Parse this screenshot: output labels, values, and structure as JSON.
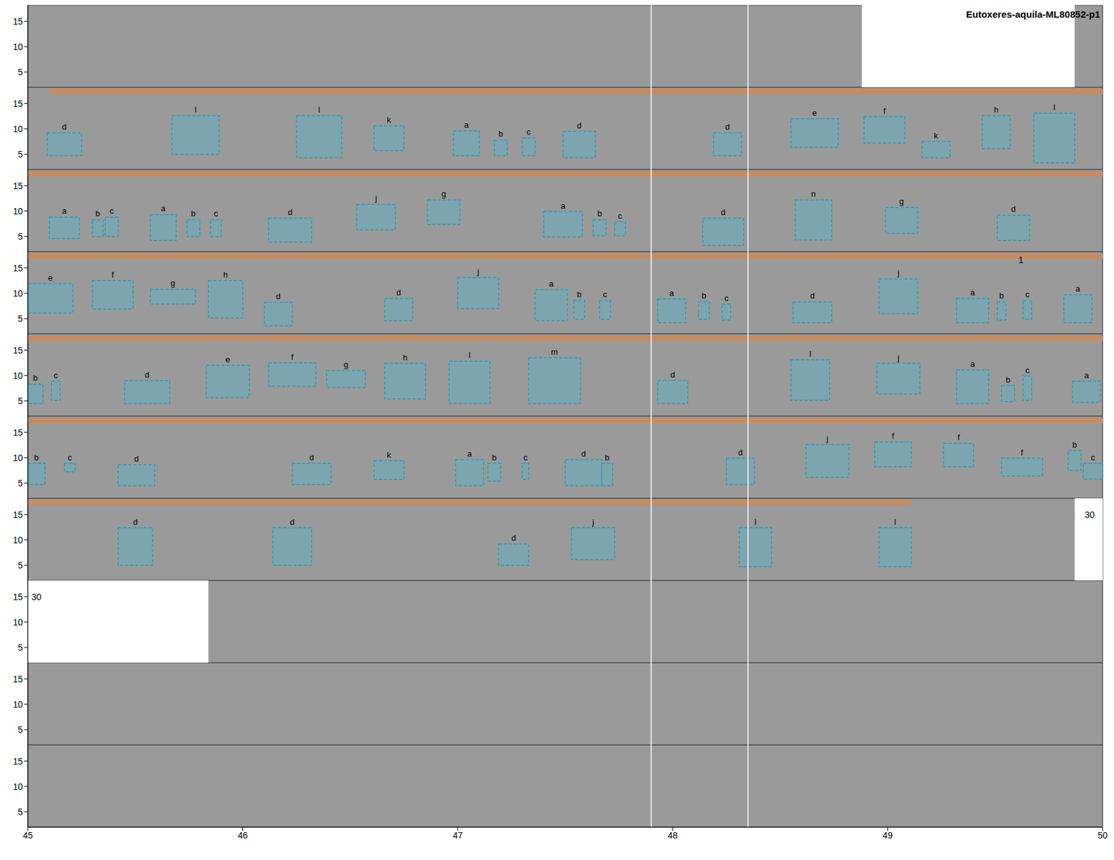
{
  "chart_data": {
    "type": "spectrogram",
    "title": "Eutoxeres-aquila-ML80852-p1",
    "xlim": [
      45,
      50
    ],
    "xticks": [
      45,
      46,
      47,
      48,
      49,
      50
    ],
    "ylim": [
      2,
      18.2
    ],
    "yticks": [
      5,
      10,
      15
    ],
    "vertical_lines": [
      47.9,
      48.35
    ],
    "rows": [
      {
        "blank": [
          [
            48.88,
            49.87
          ]
        ],
        "highlight": [],
        "boxes": [],
        "annotations": []
      },
      {
        "blank": [],
        "highlight": [
          45.1,
          50
        ],
        "boxes": [
          {
            "label": "d",
            "x": [
              45.09,
              45.25
            ],
            "y": [
              4.7,
              9.2
            ]
          },
          {
            "label": "l",
            "x": [
              45.67,
              45.89
            ],
            "y": [
              5,
              12.6
            ]
          },
          {
            "label": "l",
            "x": [
              46.25,
              46.46
            ],
            "y": [
              4.3,
              12.6
            ]
          },
          {
            "label": "k",
            "x": [
              46.61,
              46.75
            ],
            "y": [
              5.7,
              10.6
            ]
          },
          {
            "label": "a",
            "x": [
              46.98,
              47.1
            ],
            "y": [
              4.7,
              9.6
            ]
          },
          {
            "label": "b",
            "x": [
              47.17,
              47.23
            ],
            "y": [
              4.7,
              7.8
            ]
          },
          {
            "label": "c",
            "x": [
              47.3,
              47.36
            ],
            "y": [
              4.7,
              8.2
            ]
          },
          {
            "label": "d",
            "x": [
              47.49,
              47.64
            ],
            "y": [
              4.3,
              9.5
            ]
          },
          {
            "label": "d",
            "x": [
              48.19,
              48.32
            ],
            "y": [
              4.7,
              9.2
            ]
          },
          {
            "label": "e",
            "x": [
              48.55,
              48.77
            ],
            "y": [
              6.4,
              12
            ]
          },
          {
            "label": "f",
            "x": [
              48.89,
              49.08
            ],
            "y": [
              7.2,
              12.4
            ]
          },
          {
            "label": "k",
            "x": [
              49.16,
              49.29
            ],
            "y": [
              4.3,
              7.5
            ]
          },
          {
            "label": "h",
            "x": [
              49.44,
              49.57
            ],
            "y": [
              6.1,
              12.6
            ]
          },
          {
            "label": "l",
            "x": [
              49.68,
              49.87
            ],
            "y": [
              3.3,
              13.1
            ]
          }
        ],
        "annotations": []
      },
      {
        "blank": [],
        "highlight": [
          45,
          50
        ],
        "boxes": [
          {
            "label": "a",
            "x": [
              45.1,
              45.24
            ],
            "y": [
              4.6,
              8.8
            ]
          },
          {
            "label": "b",
            "x": [
              45.3,
              45.35
            ],
            "y": [
              5,
              8.3
            ]
          },
          {
            "label": "c",
            "x": [
              45.36,
              45.42
            ],
            "y": [
              5,
              8.8
            ]
          },
          {
            "label": "a",
            "x": [
              45.57,
              45.69
            ],
            "y": [
              4.2,
              9.3
            ]
          },
          {
            "label": "b",
            "x": [
              45.74,
              45.8
            ],
            "y": [
              5,
              8.3
            ]
          },
          {
            "label": "c",
            "x": [
              45.85,
              45.9
            ],
            "y": [
              5,
              8.3
            ]
          },
          {
            "label": "d",
            "x": [
              46.12,
              46.32
            ],
            "y": [
              3.9,
              8.6
            ]
          },
          {
            "label": "j",
            "x": [
              46.53,
              46.71
            ],
            "y": [
              6.3,
              11.3
            ]
          },
          {
            "label": "g",
            "x": [
              46.86,
              47.01
            ],
            "y": [
              7.4,
              12.2
            ]
          },
          {
            "label": "a",
            "x": [
              47.4,
              47.58
            ],
            "y": [
              4.9,
              9.9
            ]
          },
          {
            "label": "b",
            "x": [
              47.63,
              47.69
            ],
            "y": [
              5.1,
              8.3
            ]
          },
          {
            "label": "c",
            "x": [
              47.73,
              47.78
            ],
            "y": [
              5.1,
              7.9
            ]
          },
          {
            "label": "d",
            "x": [
              48.14,
              48.33
            ],
            "y": [
              3.2,
              8.6
            ]
          },
          {
            "label": "n",
            "x": [
              48.57,
              48.74
            ],
            "y": [
              4.3,
              12.2
            ]
          },
          {
            "label": "g",
            "x": [
              48.99,
              49.14
            ],
            "y": [
              5.6,
              10.7
            ]
          },
          {
            "label": "d",
            "x": [
              49.51,
              49.66
            ],
            "y": [
              4.2,
              9.2
            ]
          }
        ],
        "annotations": []
      },
      {
        "blank": [],
        "highlight": [
          45,
          50
        ],
        "boxes": [
          {
            "label": "e",
            "x": [
              45.0,
              45.21
            ],
            "y": [
              6.1,
              11.9
            ]
          },
          {
            "label": "f",
            "x": [
              45.3,
              45.49
            ],
            "y": [
              6.9,
              12.5
            ]
          },
          {
            "label": "g",
            "x": [
              45.57,
              45.78
            ],
            "y": [
              7.9,
              10.8
            ]
          },
          {
            "label": "h",
            "x": [
              45.84,
              46.0
            ],
            "y": [
              5.1,
              12.5
            ]
          },
          {
            "label": "d",
            "x": [
              46.1,
              46.23
            ],
            "y": [
              3.6,
              8.2
            ]
          },
          {
            "label": "d",
            "x": [
              46.66,
              46.79
            ],
            "y": [
              4.6,
              9
            ]
          },
          {
            "label": "j",
            "x": [
              47.0,
              47.19
            ],
            "y": [
              7,
              13.1
            ]
          },
          {
            "label": "a",
            "x": [
              47.36,
              47.51
            ],
            "y": [
              4.6,
              10.7
            ]
          },
          {
            "label": "b",
            "x": [
              47.54,
              47.59
            ],
            "y": [
              4.9,
              8.6
            ]
          },
          {
            "label": "c",
            "x": [
              47.66,
              47.71
            ],
            "y": [
              4.9,
              8.6
            ]
          },
          {
            "label": "a",
            "x": [
              47.93,
              48.06
            ],
            "y": [
              4.2,
              8.9
            ]
          },
          {
            "label": "b",
            "x": [
              48.12,
              48.17
            ],
            "y": [
              4.9,
              8.3
            ]
          },
          {
            "label": "c",
            "x": [
              48.23,
              48.27
            ],
            "y": [
              4.7,
              7.9
            ]
          },
          {
            "label": "d",
            "x": [
              48.56,
              48.74
            ],
            "y": [
              4.2,
              8.3
            ]
          },
          {
            "label": "j",
            "x": [
              48.96,
              49.14
            ],
            "y": [
              6,
              12.8
            ]
          },
          {
            "label": "a",
            "x": [
              49.32,
              49.47
            ],
            "y": [
              4.2,
              9
            ]
          },
          {
            "label": "b",
            "x": [
              49.51,
              49.55
            ],
            "y": [
              4.7,
              8.3
            ]
          },
          {
            "label": "c",
            "x": [
              49.63,
              49.67
            ],
            "y": [
              4.9,
              8.6
            ]
          },
          {
            "label": "a",
            "x": [
              49.82,
              49.95
            ],
            "y": [
              4.2,
              9.7
            ]
          }
        ],
        "annotations": [
          {
            "text": "1",
            "x": 49.62,
            "y": 16.6
          }
        ]
      },
      {
        "blank": [],
        "highlight": [
          45,
          50
        ],
        "boxes": [
          {
            "label": "b",
            "x": [
              45.0,
              45.07
            ],
            "y": [
              4.45,
              8.3
            ]
          },
          {
            "label": "c",
            "x": [
              45.11,
              45.15
            ],
            "y": [
              5.1,
              8.9
            ]
          },
          {
            "label": "d",
            "x": [
              45.45,
              45.66
            ],
            "y": [
              4.45,
              9
            ]
          },
          {
            "label": "e",
            "x": [
              45.83,
              46.03
            ],
            "y": [
              5.6,
              12
            ]
          },
          {
            "label": "f",
            "x": [
              46.12,
              46.34
            ],
            "y": [
              7.9,
              12.5
            ]
          },
          {
            "label": "g",
            "x": [
              46.39,
              46.57
            ],
            "y": [
              7.6,
              11
            ]
          },
          {
            "label": "h",
            "x": [
              46.66,
              46.85
            ],
            "y": [
              5.4,
              12.4
            ]
          },
          {
            "label": "l",
            "x": [
              46.96,
              47.15
            ],
            "y": [
              4.45,
              12.8
            ]
          },
          {
            "label": "m",
            "x": [
              47.33,
              47.57
            ],
            "y": [
              4.45,
              13.5
            ]
          },
          {
            "label": "d",
            "x": [
              47.93,
              48.07
            ],
            "y": [
              4.45,
              9
            ]
          },
          {
            "label": "l",
            "x": [
              48.55,
              48.73
            ],
            "y": [
              5.1,
              13.1
            ]
          },
          {
            "label": "j",
            "x": [
              48.95,
              49.15
            ],
            "y": [
              6.4,
              12.4
            ]
          },
          {
            "label": "a",
            "x": [
              49.32,
              49.47
            ],
            "y": [
              4.45,
              11.1
            ]
          },
          {
            "label": "b",
            "x": [
              49.53,
              49.59
            ],
            "y": [
              4.9,
              8
            ]
          },
          {
            "label": "c",
            "x": [
              49.63,
              49.67
            ],
            "y": [
              5.1,
              9.9
            ]
          },
          {
            "label": "a",
            "x": [
              49.86,
              49.99
            ],
            "y": [
              4.7,
              8.9
            ]
          }
        ],
        "annotations": []
      },
      {
        "blank": [],
        "highlight": [
          45,
          50
        ],
        "boxes": [
          {
            "label": "b",
            "x": [
              45.0,
              45.08
            ],
            "y": [
              4.7,
              8.9
            ]
          },
          {
            "label": "c",
            "x": [
              45.17,
              45.22
            ],
            "y": [
              7.2,
              8.9
            ]
          },
          {
            "label": "d",
            "x": [
              45.42,
              45.59
            ],
            "y": [
              4.45,
              8.6
            ]
          },
          {
            "label": "d",
            "x": [
              46.23,
              46.41
            ],
            "y": [
              4.7,
              8.9
            ]
          },
          {
            "label": "k",
            "x": [
              46.61,
              46.75
            ],
            "y": [
              5.7,
              9.4
            ]
          },
          {
            "label": "a",
            "x": [
              46.99,
              47.12
            ],
            "y": [
              4.45,
              9.6
            ]
          },
          {
            "label": "b",
            "x": [
              47.14,
              47.2
            ],
            "y": [
              5.4,
              8.9
            ]
          },
          {
            "label": "c",
            "x": [
              47.3,
              47.33
            ],
            "y": [
              5.7,
              8.9
            ]
          },
          {
            "label": "d",
            "x": [
              47.5,
              47.67
            ],
            "y": [
              4.45,
              9.6
            ]
          },
          {
            "label": "b",
            "x": [
              47.67,
              47.72
            ],
            "y": [
              4.45,
              8.9
            ]
          },
          {
            "label": "d",
            "x": [
              48.25,
              48.38
            ],
            "y": [
              4.7,
              9.9
            ]
          },
          {
            "label": "j",
            "x": [
              48.62,
              48.82
            ],
            "y": [
              6.1,
              12.6
            ]
          },
          {
            "label": "f",
            "x": [
              48.94,
              49.11
            ],
            "y": [
              8.2,
              13.1
            ]
          },
          {
            "label": "f",
            "x": [
              49.26,
              49.4
            ],
            "y": [
              8.2,
              12.8
            ]
          },
          {
            "label": "f",
            "x": [
              49.53,
              49.72
            ],
            "y": [
              6.4,
              9.9
            ]
          },
          {
            "label": "b",
            "x": [
              49.84,
              49.9
            ],
            "y": [
              7.5,
              11.4
            ]
          },
          {
            "label": "c",
            "x": [
              49.91,
              50
            ],
            "y": [
              5.8,
              8.9
            ]
          }
        ],
        "annotations": []
      },
      {
        "blank": [
          [
            49.87,
            50
          ]
        ],
        "highlight": [
          45,
          49.11
        ],
        "boxes": [
          {
            "label": "d",
            "x": [
              45.42,
              45.58
            ],
            "y": [
              5,
              12.4
            ]
          },
          {
            "label": "d",
            "x": [
              46.14,
              46.32
            ],
            "y": [
              5,
              12.4
            ]
          },
          {
            "label": "d",
            "x": [
              47.19,
              47.33
            ],
            "y": [
              5,
              9.2
            ]
          },
          {
            "label": "j",
            "x": [
              47.53,
              47.73
            ],
            "y": [
              6.1,
              12.4
            ]
          },
          {
            "label": "l",
            "x": [
              48.31,
              48.46
            ],
            "y": [
              4.7,
              12.4
            ]
          },
          {
            "label": "l",
            "x": [
              48.96,
              49.11
            ],
            "y": [
              4.7,
              12.4
            ]
          }
        ],
        "annotations": [
          {
            "text": "30",
            "x": 49.94,
            "y": 15
          }
        ]
      },
      {
        "blank": [
          [
            45,
            45.84
          ]
        ],
        "highlight": [],
        "boxes": [],
        "annotations": [
          {
            "text": "30",
            "x": 45.04,
            "y": 15
          }
        ]
      },
      {
        "blank": [],
        "highlight": [],
        "boxes": [],
        "annotations": []
      },
      {
        "blank": [],
        "highlight": [],
        "boxes": [],
        "annotations": []
      }
    ]
  }
}
